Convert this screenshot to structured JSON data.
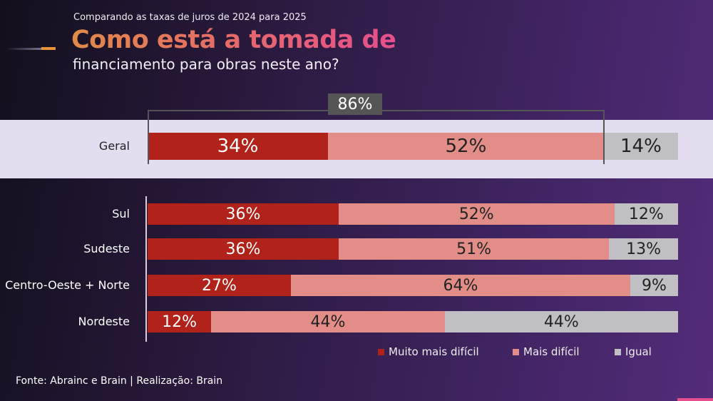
{
  "header": {
    "subtitle": "Comparando as taxas de juros de 2024 para 2025",
    "title_line1": "Como está a tomada de",
    "title_line2": "financiamento para obras neste ano?"
  },
  "chart_data": {
    "type": "bar",
    "orientation": "horizontal",
    "stacked": true,
    "categories": [
      "Geral",
      "Sul",
      "Sudeste",
      "Centro-Oeste + Norte",
      "Nordeste"
    ],
    "series": [
      {
        "name": "Muito mais difícil",
        "color": "#b0221a",
        "values": [
          34,
          36,
          36,
          27,
          12
        ]
      },
      {
        "name": "Mais difícil",
        "color": "#e28d88",
        "values": [
          52,
          52,
          51,
          64,
          44
        ]
      },
      {
        "name": "Igual",
        "color": "#c0c0c4",
        "values": [
          14,
          12,
          13,
          9,
          44
        ]
      }
    ],
    "labels": [
      [
        "34%",
        "52%",
        "14%"
      ],
      [
        "36%",
        "52%",
        "12%"
      ],
      [
        "36%",
        "51%",
        "13%"
      ],
      [
        "27%",
        "64%",
        "9%"
      ],
      [
        "12%",
        "44%",
        "44%"
      ]
    ],
    "highlight": {
      "label": "86%",
      "covers": [
        "Muito mais difícil",
        "Mais difícil"
      ],
      "category": "Geral"
    },
    "xlim": [
      0,
      100
    ],
    "legend": "bottom-right"
  },
  "footer": {
    "source": "Fonte: Abrainc  e Brain  |   Realização: Brain"
  }
}
